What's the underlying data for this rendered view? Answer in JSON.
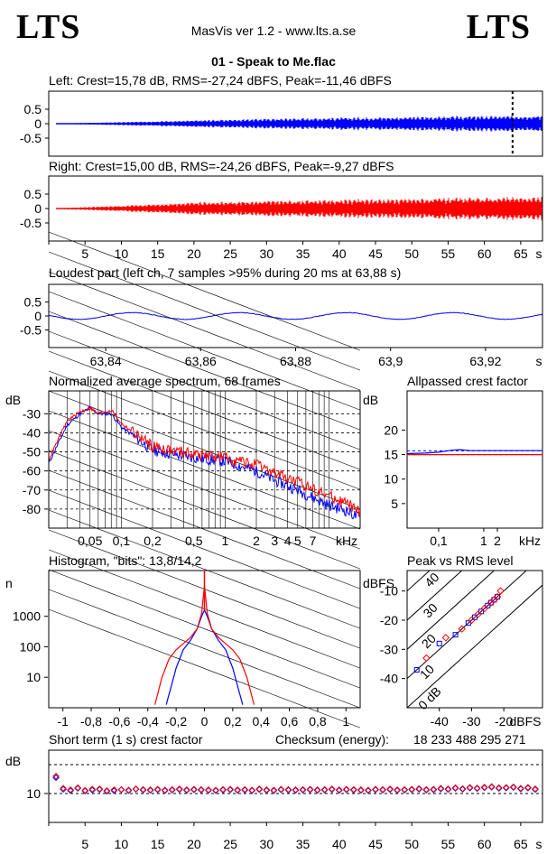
{
  "header": {
    "logo_left": "LTS",
    "logo_right": "LTS",
    "app_line": "MasVis ver 1.2 - www.lts.a.se",
    "file_title": "01 - Speak to Me.flac"
  },
  "colors": {
    "left": "#0000ff",
    "right": "#ff0000",
    "axis": "#000000",
    "grid": "#000000"
  },
  "chart_data": [
    {
      "id": "left_waveform",
      "type": "area",
      "title": "Left: Crest=15,78 dB, RMS=-27,24 dBFS, Peak=-11,46 dBFS",
      "ylim": [
        -1,
        1
      ],
      "xlim": [
        0,
        68
      ],
      "yticks": [
        "0.5",
        "0",
        "-0.5"
      ],
      "marker_x": 63.88,
      "envelope": {
        "x": [
          1,
          10,
          20,
          30,
          40,
          50,
          55,
          60,
          65,
          68
        ],
        "amp": [
          0.005,
          0.06,
          0.12,
          0.18,
          0.22,
          0.25,
          0.27,
          0.28,
          0.3,
          0.3
        ]
      }
    },
    {
      "id": "right_waveform",
      "type": "area",
      "title": "Right: Crest=15,00 dB, RMS=-24,26 dBFS, Peak=-9,27 dBFS",
      "ylim": [
        -1,
        1
      ],
      "xlim": [
        0,
        68
      ],
      "yticks": [
        "0.5",
        "0",
        "-0.5"
      ],
      "xticks": [
        "5",
        "10",
        "15",
        "20",
        "25",
        "30",
        "35",
        "40",
        "45",
        "50",
        "55",
        "60",
        "65"
      ],
      "xunit": "s",
      "envelope": {
        "x": [
          1,
          10,
          20,
          30,
          40,
          50,
          55,
          60,
          65,
          68
        ],
        "amp": [
          0.01,
          0.1,
          0.22,
          0.28,
          0.32,
          0.36,
          0.38,
          0.4,
          0.42,
          0.42
        ]
      }
    },
    {
      "id": "loudest_part",
      "type": "line",
      "title": "Loudest part (left  ch, 7 samples >95% during 20 ms at 63,88 s)",
      "ylim": [
        -1,
        1
      ],
      "xlim": [
        63.828,
        63.932
      ],
      "yticks": [
        "0.5",
        "0",
        "-0.5"
      ],
      "xticks": [
        "63,84",
        "63,86",
        "63,88",
        "63,9",
        "63,92"
      ],
      "xunit": "s",
      "wave": {
        "amplitude": 0.12,
        "period_s": 0.0225,
        "phase_s": 63.84
      }
    },
    {
      "id": "spectrum",
      "type": "line",
      "title": "Normalized average spectrum, 68 frames",
      "ylabel": "dB",
      "xlabel": "kHz",
      "yticks": [
        "-30",
        "-40",
        "-50",
        "-60",
        "-70",
        "-80"
      ],
      "xticks": [
        "0,05",
        "0,1",
        "0,2",
        "0,5",
        "1",
        "2",
        "3",
        "4",
        "5",
        "7"
      ],
      "ylim": [
        -90,
        -18
      ],
      "series": [
        {
          "color": "left",
          "freq_khz": [
            0.02,
            0.03,
            0.04,
            0.05,
            0.06,
            0.08,
            0.1,
            0.15,
            0.2,
            0.3,
            0.5,
            0.7,
            1,
            2,
            3,
            5,
            7,
            10,
            15,
            20
          ],
          "db": [
            -56,
            -36,
            -30,
            -27,
            -30,
            -30,
            -37,
            -44,
            -49,
            -51,
            -53,
            -54,
            -55,
            -60,
            -65,
            -70,
            -74,
            -78,
            -81,
            -85
          ]
        },
        {
          "color": "right",
          "freq_khz": [
            0.02,
            0.03,
            0.04,
            0.05,
            0.06,
            0.08,
            0.1,
            0.15,
            0.2,
            0.3,
            0.5,
            0.7,
            1,
            2,
            3,
            5,
            7,
            10,
            15,
            20
          ],
          "db": [
            -54,
            -34,
            -29,
            -27,
            -30,
            -28,
            -35,
            -42,
            -47,
            -49,
            -51,
            -52,
            -53,
            -57,
            -61,
            -66,
            -69,
            -73,
            -77,
            -82
          ]
        }
      ]
    },
    {
      "id": "allpassed_crest",
      "type": "line",
      "title": "Allpassed crest factor",
      "ylabel": "dB",
      "xlabel": "kHz",
      "yticks": [
        "20",
        "15",
        "10",
        "5"
      ],
      "ylim": [
        0,
        28
      ],
      "xticks": [
        "0,1",
        "1",
        "2"
      ],
      "series": [
        {
          "color": "left",
          "freq_khz": [
            0.02,
            0.05,
            0.1,
            0.2,
            0.3,
            0.5,
            1,
            2,
            5,
            20
          ],
          "db": [
            15.2,
            15.3,
            15.5,
            15.9,
            16.0,
            15.8,
            15.8,
            15.8,
            15.8,
            15.8
          ]
        },
        {
          "color": "right",
          "freq_khz": [
            0.02,
            0.05,
            0.1,
            0.2,
            0.3,
            0.5,
            1,
            2,
            5,
            20
          ],
          "db": [
            15.0,
            15.0,
            15.0,
            15.0,
            15.0,
            15.0,
            15.0,
            15.0,
            15.0,
            15.0
          ]
        }
      ],
      "reference_db": [
        15.78,
        15.0
      ]
    },
    {
      "id": "histogram",
      "type": "line",
      "title": "Histogram, \"bits\": 13,8/14,2",
      "ylabel": "n",
      "yticks": [
        "1000",
        "100",
        "10"
      ],
      "xticks": [
        "-1",
        "-0,8",
        "-0,6",
        "-0,4",
        "-0,2",
        "0",
        "0,2",
        "0,4",
        "0,6",
        "0,8",
        "1"
      ],
      "xlim": [
        -1.1,
        1.1
      ],
      "series": [
        {
          "color": "left",
          "x": [
            -0.27,
            -0.2,
            -0.15,
            -0.1,
            -0.05,
            -0.02,
            0,
            0.02,
            0.05,
            0.1,
            0.15,
            0.2,
            0.27
          ],
          "log_n": [
            0.1,
            1.3,
            1.9,
            2.2,
            2.6,
            3.0,
            3.2,
            3.0,
            2.6,
            2.2,
            1.9,
            1.3,
            0.1
          ]
        },
        {
          "color": "right",
          "x": [
            -0.35,
            -0.3,
            -0.25,
            -0.2,
            -0.15,
            -0.1,
            -0.05,
            -0.02,
            0,
            0.02,
            0.05,
            0.1,
            0.15,
            0.2,
            0.25,
            0.3,
            0.35
          ],
          "log_n": [
            0.1,
            1.0,
            1.6,
            1.9,
            2.1,
            2.3,
            2.6,
            3.1,
            4.0,
            3.1,
            2.6,
            2.3,
            2.1,
            1.9,
            1.6,
            1.0,
            0.1
          ]
        }
      ]
    },
    {
      "id": "peak_vs_rms",
      "type": "scatter",
      "title": "Peak vs RMS level",
      "ylabel": "dBFS",
      "xlabel": "dBFS",
      "yticks": [
        "-10",
        "-20",
        "-30",
        "-40"
      ],
      "xticks": [
        "-40",
        "-30",
        "-20"
      ],
      "xlim": [
        -50,
        -8
      ],
      "ylim": [
        -50,
        -3
      ],
      "diagonals": [
        "40",
        "30",
        "20",
        "10",
        "0 dB"
      ],
      "points_left": [
        [
          -47,
          -37
        ],
        [
          -40,
          -28
        ],
        [
          -35,
          -25
        ],
        [
          -31,
          -21
        ],
        [
          -29,
          -19
        ],
        [
          -27,
          -17
        ],
        [
          -25,
          -15
        ],
        [
          -24,
          -14
        ],
        [
          -23,
          -13
        ],
        [
          -22,
          -12
        ]
      ],
      "points_right": [
        [
          -44,
          -33
        ],
        [
          -38,
          -26
        ],
        [
          -33,
          -23
        ],
        [
          -30,
          -20
        ],
        [
          -28,
          -18
        ],
        [
          -26,
          -16
        ],
        [
          -24,
          -14
        ],
        [
          -23,
          -13
        ],
        [
          -22,
          -12
        ],
        [
          -21,
          -10
        ]
      ]
    },
    {
      "id": "short_term_crest",
      "type": "scatter",
      "title": "Short term (1 s) crest factor",
      "checksum_label": "Checksum (energy):",
      "checksum_value": "18 233 488 295 271",
      "ylabel": "dB",
      "yticks": [
        "10"
      ],
      "ylim": [
        0,
        25
      ],
      "xlim": [
        0,
        68
      ],
      "xticks": [
        "5",
        "10",
        "15",
        "20",
        "25",
        "30",
        "35",
        "40",
        "45",
        "50",
        "55",
        "60",
        "65"
      ],
      "xunit": "s",
      "reference_db": [
        10,
        20
      ],
      "points_left": [
        15.5,
        11.5,
        11.0,
        11.8,
        10.9,
        11.2,
        11.4,
        10.8,
        11.0,
        11.3,
        11.0,
        11.5,
        11.2,
        11.1,
        11.3,
        11.0,
        11.2,
        11.4,
        11.1,
        11.3,
        11.2,
        11.1,
        11.0,
        11.2,
        11.3,
        11.1,
        11.2,
        11.0,
        11.4,
        11.1,
        11.0,
        11.3,
        11.2,
        11.1,
        11.2,
        11.3,
        11.1,
        11.2,
        11.4,
        11.1,
        11.3,
        11.2,
        11.1,
        11.0,
        11.3,
        11.2,
        11.4,
        11.1,
        11.2,
        11.3,
        11.5,
        11.2,
        11.3,
        11.6,
        11.4,
        11.8,
        11.5,
        11.9,
        11.7,
        12.0,
        12.2,
        11.8,
        11.9,
        12.1,
        11.6,
        11.9,
        11.4
      ],
      "points_right": [
        16.0,
        11.8,
        11.3,
        12.0,
        11.1,
        11.5,
        11.6,
        11.0,
        11.3,
        11.4,
        11.2,
        11.6,
        11.4,
        11.3,
        11.5,
        11.2,
        11.4,
        11.6,
        11.3,
        11.5,
        11.4,
        11.3,
        11.2,
        11.4,
        11.5,
        11.3,
        11.4,
        11.2,
        11.6,
        11.3,
        11.2,
        11.5,
        11.4,
        11.3,
        11.4,
        11.5,
        11.3,
        11.4,
        11.6,
        11.3,
        11.5,
        11.4,
        11.3,
        11.2,
        11.5,
        11.4,
        11.6,
        11.3,
        11.4,
        11.5,
        11.7,
        11.4,
        11.5,
        11.8,
        11.6,
        12.0,
        11.7,
        12.1,
        11.9,
        12.2,
        12.4,
        12.0,
        12.1,
        12.3,
        11.8,
        12.1,
        11.6
      ]
    }
  ]
}
